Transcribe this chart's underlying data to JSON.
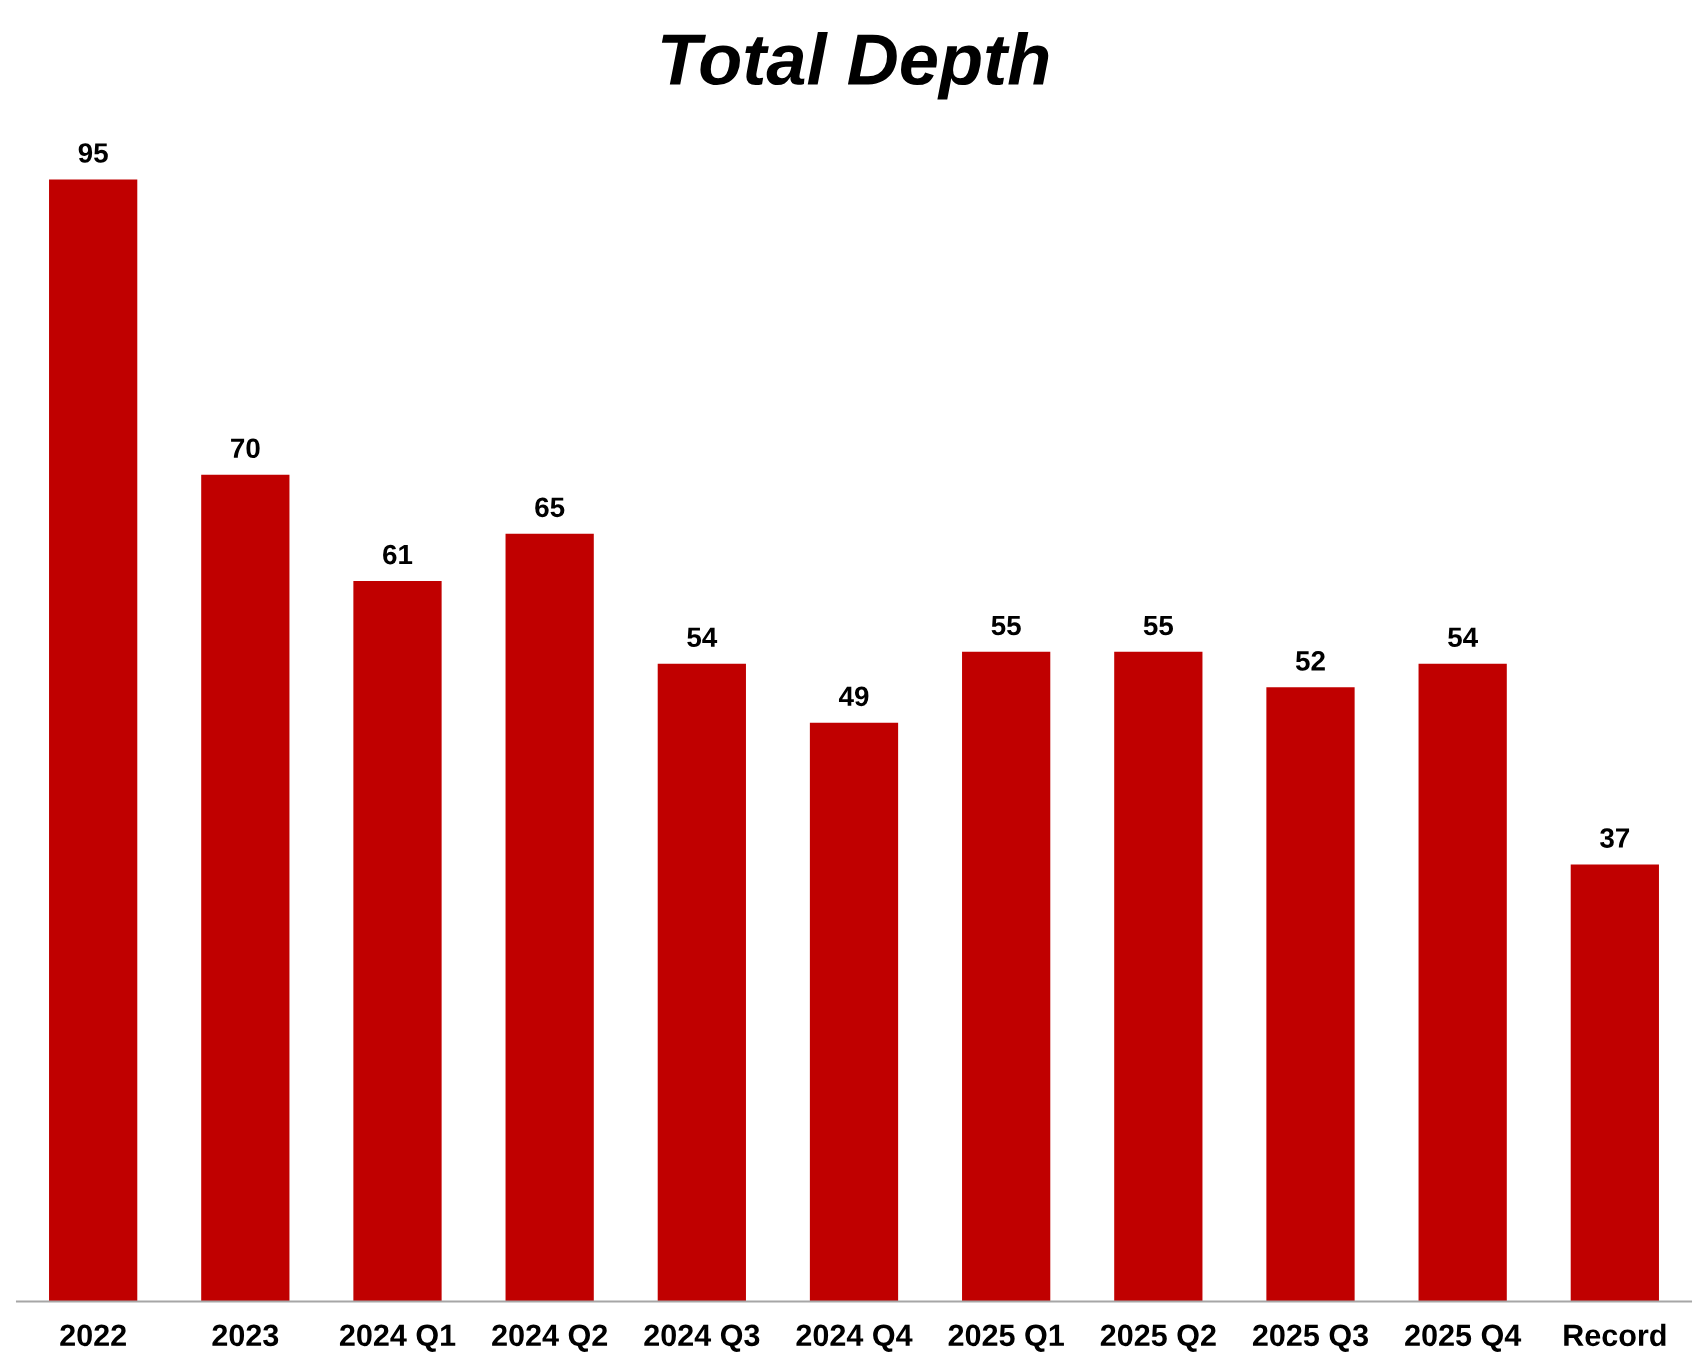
{
  "chart_data": {
    "type": "bar",
    "title": "Total Depth",
    "categories": [
      "2022",
      "2023",
      "2024 Q1",
      "2024 Q2",
      "2024 Q3",
      "2024 Q4",
      "2025 Q1",
      "2025 Q2",
      "2025 Q3",
      "2025 Q4",
      "Record"
    ],
    "values": [
      95,
      70,
      61,
      65,
      54,
      49,
      55,
      55,
      52,
      54,
      37
    ],
    "color": "#c00000",
    "data_labels": true,
    "grid": false,
    "legend": false
  }
}
